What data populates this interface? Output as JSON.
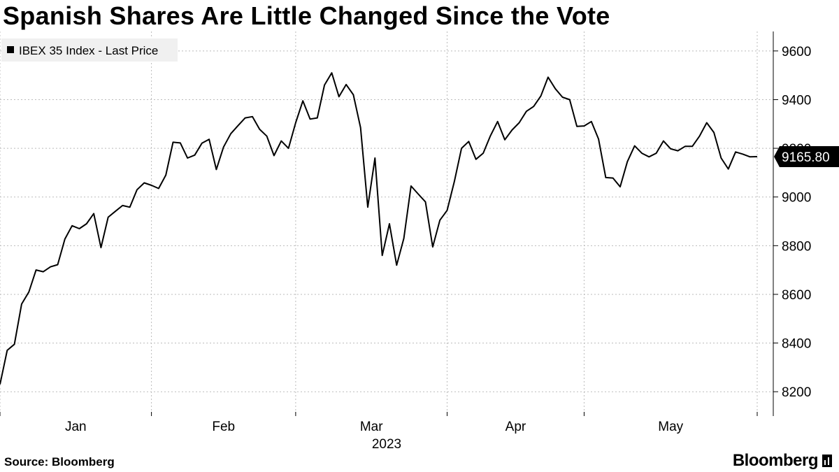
{
  "header": {
    "title": "Spanish Shares Are Little Changed Since the Vote"
  },
  "footer": {
    "source": "Source: Bloomberg",
    "brand": "Bloomberg"
  },
  "chart_data": {
    "type": "line",
    "title": "Spanish Shares Are Little Changed Since the Vote",
    "xlabel": "2023",
    "ylabel": "",
    "ylim": [
      8100,
      9680
    ],
    "y_ticks": [
      8200,
      8400,
      8600,
      8800,
      9000,
      9200,
      9400,
      9600
    ],
    "x_tick_labels": [
      "Jan",
      "Feb",
      "Mar",
      "Apr",
      "May"
    ],
    "x_year_label": "2023",
    "legend": {
      "position": "top-left",
      "entries": [
        "IBEX 35 Index - Last Price"
      ]
    },
    "last_value_label": "9165.80",
    "colors": {
      "line": "#000000",
      "grid": "#bbbbbb",
      "legend_bg": "#f0f0f0"
    },
    "series": [
      {
        "name": "IBEX 35 Index - Last Price",
        "x": [
          0,
          1,
          2,
          3,
          4,
          5,
          6,
          7,
          8,
          9,
          10,
          11,
          12,
          13,
          14,
          15,
          16,
          17,
          18,
          19,
          20,
          21,
          22,
          23,
          24,
          25,
          26,
          27,
          28,
          29,
          30,
          31,
          32,
          33,
          34,
          35,
          36,
          37,
          38,
          39,
          40,
          41,
          42,
          43,
          44,
          45,
          46,
          47,
          48,
          49,
          50,
          51,
          52,
          53,
          54,
          55,
          56,
          57,
          58,
          59,
          60,
          61,
          62,
          63,
          64,
          65,
          66,
          67,
          68,
          69,
          70,
          71,
          72,
          73,
          74,
          75,
          76,
          77,
          78,
          79,
          80,
          81,
          82,
          83,
          84,
          85,
          86,
          87,
          88,
          89,
          90,
          91,
          92,
          93,
          94,
          95,
          96,
          97,
          98,
          99,
          100,
          101,
          102,
          103,
          104,
          105
        ],
        "values": [
          8230,
          8370,
          8395,
          8560,
          8610,
          8700,
          8693,
          8713,
          8722,
          8827,
          8882,
          8870,
          8890,
          8932,
          8792,
          8917,
          8941,
          8965,
          8958,
          9030,
          9058,
          9048,
          9035,
          9090,
          9225,
          9222,
          9160,
          9172,
          9221,
          9237,
          9113,
          9205,
          9260,
          9293,
          9325,
          9330,
          9278,
          9250,
          9170,
          9230,
          9200,
          9305,
          9395,
          9320,
          9325,
          9460,
          9510,
          9412,
          9462,
          9420,
          9285,
          8958,
          9160,
          8760,
          8890,
          8720,
          8830,
          9045,
          9012,
          8980,
          8795,
          8905,
          8945,
          9063,
          9200,
          9228,
          9155,
          9180,
          9251,
          9310,
          9235,
          9275,
          9305,
          9352,
          9372,
          9415,
          9492,
          9445,
          9410,
          9400,
          9290,
          9292,
          9310,
          9238,
          9080,
          9078,
          9042,
          9145,
          9210,
          9180,
          9165,
          9180,
          9230,
          9198,
          9190,
          9208,
          9208,
          9250,
          9305,
          9265,
          9160,
          9115,
          9185,
          9176,
          9165,
          9165.8
        ]
      }
    ]
  }
}
